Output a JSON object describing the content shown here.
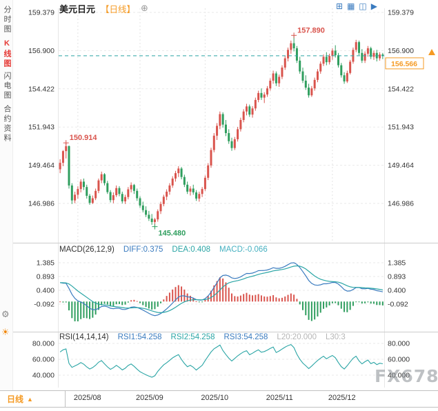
{
  "header": {
    "title": "美元日元",
    "period": "【日线】",
    "add_icon": "⊕",
    "tool_icons": [
      {
        "name": "layout-grid",
        "glyph": "⊞"
      },
      {
        "name": "layout-multi",
        "glyph": "▦"
      },
      {
        "name": "layout-split",
        "glyph": "◫"
      },
      {
        "name": "play",
        "glyph": "▶"
      }
    ]
  },
  "sidebar": {
    "items": [
      {
        "label": "分时图",
        "active": false
      },
      {
        "label": "K线图",
        "active": true
      },
      {
        "label": "闪电图",
        "active": false
      },
      {
        "label": "合约资料",
        "active": false
      }
    ],
    "icons": [
      {
        "name": "gear",
        "glyph": "⚙"
      },
      {
        "name": "theme",
        "glyph": "☀"
      }
    ]
  },
  "colors": {
    "up": "#d9544d",
    "down": "#2f9e5e",
    "accent": "#f59a23",
    "active_tab": "#e53935",
    "diff_line": "#3a7bbf",
    "dea_line": "#2aa5a5",
    "macd_value": "#45b0c0",
    "last_price_line": "#2aa5a5",
    "muted_label": "#b5b5b5"
  },
  "chart_data": {
    "type": "candlestick",
    "title": "美元日元 日线 (USD/JPY daily)",
    "y_ticks": [
      159.379,
      156.9,
      154.422,
      151.943,
      149.464,
      146.986
    ],
    "x_ticks": [
      {
        "label": "2025/08",
        "index": 6
      },
      {
        "label": "2025/09",
        "index": 27
      },
      {
        "label": "2025/10",
        "index": 49
      },
      {
        "label": "2025/11",
        "index": 71
      },
      {
        "label": "2025/12",
        "index": 92
      }
    ],
    "last_close": 156.566,
    "annotations": [
      {
        "text": "150.914",
        "price": 150.914,
        "index": 2,
        "placement": "above",
        "type": "high"
      },
      {
        "text": "157.890",
        "price": 157.89,
        "index": 79,
        "placement": "above",
        "type": "high"
      },
      {
        "text": "145.480",
        "price": 145.48,
        "index": 32,
        "placement": "below",
        "type": "low"
      }
    ],
    "candles": [
      [
        149.2,
        149.85,
        148.95,
        149.62
      ],
      [
        149.62,
        150.45,
        149.4,
        150.38
      ],
      [
        150.38,
        150.914,
        149.9,
        150.7
      ],
      [
        150.7,
        150.75,
        147.95,
        148.15
      ],
      [
        148.15,
        148.3,
        146.95,
        147.18
      ],
      [
        147.18,
        147.75,
        147.0,
        147.55
      ],
      [
        147.55,
        148.1,
        147.3,
        147.92
      ],
      [
        147.92,
        148.55,
        147.7,
        148.4
      ],
      [
        148.4,
        148.6,
        147.85,
        148.05
      ],
      [
        148.05,
        148.2,
        147.3,
        147.48
      ],
      [
        147.48,
        147.6,
        146.9,
        147.02
      ],
      [
        147.02,
        147.5,
        146.95,
        147.32
      ],
      [
        147.32,
        147.95,
        147.2,
        147.8
      ],
      [
        147.8,
        148.6,
        147.65,
        148.48
      ],
      [
        148.48,
        149.05,
        148.3,
        148.88
      ],
      [
        148.88,
        148.95,
        148.15,
        148.3
      ],
      [
        148.3,
        148.45,
        147.6,
        147.72
      ],
      [
        147.72,
        147.85,
        147.05,
        147.2
      ],
      [
        147.2,
        147.7,
        147.0,
        147.52
      ],
      [
        147.52,
        148.15,
        147.4,
        147.98
      ],
      [
        147.98,
        148.1,
        147.45,
        147.6
      ],
      [
        147.6,
        147.75,
        146.98,
        147.12
      ],
      [
        147.12,
        147.55,
        146.95,
        147.4
      ],
      [
        147.4,
        148.05,
        147.25,
        147.9
      ],
      [
        147.9,
        148.35,
        147.7,
        148.18
      ],
      [
        148.18,
        148.25,
        147.6,
        147.8
      ],
      [
        147.8,
        147.95,
        147.15,
        147.32
      ],
      [
        147.32,
        147.45,
        146.7,
        146.85
      ],
      [
        146.85,
        147.1,
        146.4,
        146.55
      ],
      [
        146.55,
        146.8,
        146.1,
        146.25
      ],
      [
        146.25,
        146.5,
        145.85,
        146.0
      ],
      [
        146.0,
        146.3,
        145.6,
        145.78
      ],
      [
        145.78,
        146.05,
        145.48,
        145.95
      ],
      [
        145.95,
        146.6,
        145.8,
        146.48
      ],
      [
        146.48,
        147.1,
        146.3,
        146.95
      ],
      [
        146.95,
        147.55,
        146.8,
        147.42
      ],
      [
        147.42,
        147.9,
        147.2,
        147.75
      ],
      [
        147.75,
        148.3,
        147.55,
        148.15
      ],
      [
        148.15,
        148.75,
        148.0,
        148.6
      ],
      [
        148.6,
        149.1,
        148.4,
        148.95
      ],
      [
        148.95,
        149.4,
        148.7,
        149.25
      ],
      [
        149.25,
        149.35,
        148.55,
        148.7
      ],
      [
        148.7,
        148.85,
        148.05,
        148.2
      ],
      [
        148.2,
        148.4,
        147.6,
        147.75
      ],
      [
        147.75,
        148.1,
        147.5,
        147.95
      ],
      [
        147.95,
        148.2,
        147.55,
        147.7
      ],
      [
        147.7,
        147.85,
        147.15,
        147.3
      ],
      [
        147.3,
        147.75,
        147.1,
        147.6
      ],
      [
        147.6,
        148.05,
        147.4,
        147.92
      ],
      [
        147.92,
        148.8,
        147.8,
        148.65
      ],
      [
        148.65,
        149.6,
        148.5,
        149.45
      ],
      [
        149.45,
        150.6,
        149.3,
        150.45
      ],
      [
        150.45,
        151.55,
        150.3,
        151.38
      ],
      [
        151.38,
        152.2,
        151.1,
        152.02
      ],
      [
        152.02,
        152.95,
        151.8,
        152.78
      ],
      [
        152.78,
        152.9,
        151.9,
        152.1
      ],
      [
        152.1,
        152.4,
        151.35,
        151.55
      ],
      [
        151.55,
        151.8,
        150.85,
        151.02
      ],
      [
        151.02,
        151.25,
        150.4,
        150.58
      ],
      [
        150.58,
        151.3,
        150.45,
        151.15
      ],
      [
        151.15,
        151.95,
        151.0,
        151.8
      ],
      [
        151.8,
        152.55,
        151.65,
        152.4
      ],
      [
        152.4,
        153.1,
        152.25,
        152.95
      ],
      [
        152.95,
        153.45,
        152.7,
        153.28
      ],
      [
        153.28,
        153.4,
        152.6,
        152.75
      ],
      [
        152.75,
        153.3,
        152.55,
        153.15
      ],
      [
        153.15,
        153.85,
        153.0,
        153.7
      ],
      [
        153.7,
        154.3,
        153.55,
        154.15
      ],
      [
        154.15,
        154.45,
        153.7,
        153.85
      ],
      [
        153.85,
        154.2,
        153.5,
        154.05
      ],
      [
        154.05,
        154.6,
        153.9,
        154.45
      ],
      [
        154.45,
        155.1,
        154.3,
        154.95
      ],
      [
        154.95,
        155.6,
        154.75,
        155.42
      ],
      [
        155.42,
        155.55,
        154.6,
        154.78
      ],
      [
        154.78,
        155.35,
        154.55,
        155.2
      ],
      [
        155.2,
        155.95,
        155.05,
        155.8
      ],
      [
        155.8,
        156.55,
        155.65,
        156.4
      ],
      [
        156.4,
        157.1,
        156.2,
        156.95
      ],
      [
        156.95,
        157.55,
        156.7,
        157.38
      ],
      [
        157.38,
        157.89,
        156.85,
        157.05
      ],
      [
        157.05,
        157.2,
        156.1,
        156.25
      ],
      [
        156.25,
        156.5,
        155.4,
        155.55
      ],
      [
        155.55,
        155.8,
        154.8,
        154.95
      ],
      [
        154.95,
        155.3,
        154.35,
        154.5
      ],
      [
        154.5,
        154.75,
        153.85,
        154.0
      ],
      [
        154.0,
        154.6,
        153.9,
        154.45
      ],
      [
        154.45,
        155.15,
        154.3,
        155.0
      ],
      [
        155.0,
        155.7,
        154.85,
        155.55
      ],
      [
        155.55,
        156.2,
        155.4,
        156.05
      ],
      [
        156.05,
        156.65,
        155.9,
        156.5
      ],
      [
        156.5,
        156.8,
        155.95,
        156.15
      ],
      [
        156.15,
        156.7,
        156.0,
        156.55
      ],
      [
        156.55,
        157.05,
        156.3,
        156.9
      ],
      [
        156.9,
        157.25,
        156.45,
        156.6
      ],
      [
        156.6,
        156.75,
        155.8,
        155.95
      ],
      [
        155.95,
        156.1,
        155.15,
        155.3
      ],
      [
        155.3,
        155.5,
        154.75,
        154.9
      ],
      [
        154.9,
        155.6,
        154.8,
        155.45
      ],
      [
        155.45,
        156.3,
        155.35,
        156.18
      ],
      [
        156.18,
        157.1,
        156.05,
        156.95
      ],
      [
        156.95,
        157.6,
        156.8,
        157.45
      ],
      [
        157.45,
        157.55,
        156.6,
        156.75
      ],
      [
        156.75,
        157.0,
        156.1,
        156.25
      ],
      [
        156.25,
        156.85,
        156.1,
        156.7
      ],
      [
        156.7,
        157.2,
        156.5,
        157.05
      ],
      [
        157.05,
        157.15,
        156.35,
        156.5
      ],
      [
        156.5,
        156.9,
        156.3,
        156.75
      ],
      [
        156.75,
        156.95,
        156.2,
        156.4
      ],
      [
        156.4,
        156.8,
        156.25,
        156.65
      ],
      [
        156.65,
        156.75,
        156.35,
        156.566
      ]
    ]
  },
  "macd": {
    "title": "MACD(26,12,9)",
    "diff_label": "DIFF:0.375",
    "dea_label": "DEA:0.408",
    "macd_label": "MACD:-0.066",
    "y_ticks": [
      1.385,
      0.893,
      0.4,
      -0.092
    ]
  },
  "rsi": {
    "title": "RSI(14,14,14)",
    "rsi1_label": "RSI1:54.258",
    "rsi2_label": "RSI2:54.258",
    "rsi3_label": "RSI3:54.258",
    "l20_label": "L20:20.000",
    "l30_label": "L30:3",
    "y_ticks": [
      80.0,
      60.0,
      40.0
    ]
  },
  "bottom": {
    "period_label": "日线",
    "arrow": "▲",
    "time_labels": [
      "2025/08",
      "2025/09",
      "2025/10",
      "2025/11",
      "2025/12"
    ]
  },
  "watermark": "FX678"
}
